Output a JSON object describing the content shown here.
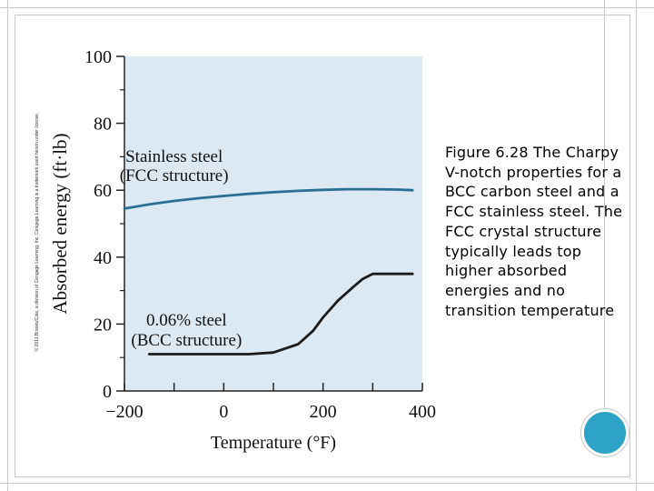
{
  "copyright": "© 2011 Brooks/Cole, a division of Cengage Learning, Inc. Cengage Learning is a trademark used herein under license.",
  "caption": "Figure 6.28 The Charpy V-notch properties for a BCC carbon steel and a FCC stainless steel. The FCC crystal structure typically leads top higher absorbed energies and no transition temperature",
  "colors": {
    "plot_bg": "#dce8f2",
    "curve": "#1a1a1a",
    "fcc_curve": "#2a6e96",
    "accent": "#2ea3c8"
  },
  "chart_data": {
    "type": "line",
    "xlabel": "Temperature (°F)",
    "ylabel": "Absorbed energy (ft·lb)",
    "xlim": [
      -200,
      400
    ],
    "ylim": [
      0,
      100
    ],
    "x_ticks": [
      "−200",
      "0",
      "200",
      "400"
    ],
    "y_ticks": [
      "0",
      "20",
      "40",
      "60",
      "80",
      "100"
    ],
    "grid": false,
    "series": [
      {
        "name": "Stainless steel",
        "name_line2": "(FCC structure)",
        "x": [
          -200,
          -150,
          -100,
          -50,
          0,
          50,
          100,
          150,
          200,
          250,
          300,
          350,
          380
        ],
        "y": [
          54.5,
          55.8,
          56.8,
          57.6,
          58.3,
          58.9,
          59.4,
          59.8,
          60.1,
          60.3,
          60.3,
          60.2,
          60.0
        ]
      },
      {
        "name": "0.06% steel",
        "name_line2": "(BCC structure)",
        "x": [
          -150,
          -100,
          -50,
          0,
          50,
          100,
          150,
          180,
          200,
          230,
          260,
          280,
          300,
          340,
          380
        ],
        "y": [
          11,
          11,
          11,
          11,
          11,
          11.5,
          14,
          18,
          22,
          27,
          31,
          33.5,
          35,
          35,
          35
        ]
      }
    ]
  }
}
